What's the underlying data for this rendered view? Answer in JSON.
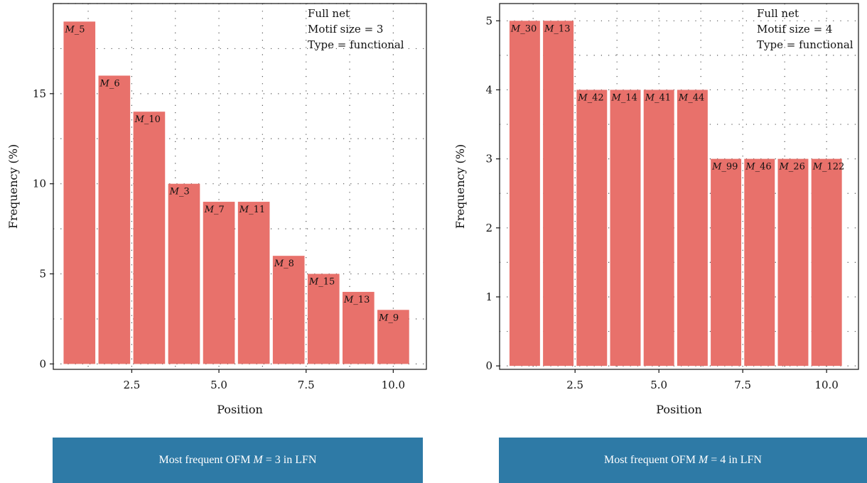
{
  "colors": {
    "bar": "#e8716b",
    "banner": "#2e7aa6",
    "axis": "#222222",
    "grid": "#555555"
  },
  "chart_data": [
    {
      "type": "bar",
      "xlabel": "Position",
      "ylabel": "Frequency (%)",
      "xlim": [
        0.25,
        10.95
      ],
      "ylim": [
        -0.3,
        20.0
      ],
      "xticks": [
        "2.5",
        "5.0",
        "7.5",
        "10.0"
      ],
      "yticks": [
        "0",
        "5",
        "10",
        "15"
      ],
      "grid": "dotted",
      "annotation": [
        "Full net",
        "Motif size = 3",
        "Type = functional"
      ],
      "bars": [
        {
          "position": 1,
          "value": 19,
          "label": "M_5"
        },
        {
          "position": 2,
          "value": 16,
          "label": "M_6"
        },
        {
          "position": 3,
          "value": 14,
          "label": "M_10"
        },
        {
          "position": 4,
          "value": 10,
          "label": "M_3"
        },
        {
          "position": 5,
          "value": 9,
          "label": "M_7"
        },
        {
          "position": 6,
          "value": 9,
          "label": "M_11"
        },
        {
          "position": 7,
          "value": 6,
          "label": "M_8"
        },
        {
          "position": 8,
          "value": 5,
          "label": "M_15"
        },
        {
          "position": 9,
          "value": 4,
          "label": "M_13"
        },
        {
          "position": 10,
          "value": 3,
          "label": "M_9"
        }
      ],
      "caption": {
        "pre": "Most frequent OFM ",
        "var": "M",
        "post": " = 3 in LFN"
      }
    },
    {
      "type": "bar",
      "xlabel": "Position",
      "ylabel": "Frequency (%)",
      "xlim": [
        0.25,
        10.95
      ],
      "ylim": [
        -0.05,
        5.25
      ],
      "xticks": [
        "2.5",
        "5.0",
        "7.5",
        "10.0"
      ],
      "yticks": [
        "0",
        "1",
        "2",
        "3",
        "4",
        "5"
      ],
      "grid": "dotted",
      "annotation": [
        "Full net",
        "Motif size = 4",
        "Type = functional"
      ],
      "bars": [
        {
          "position": 1,
          "value": 5,
          "label": "M_30"
        },
        {
          "position": 2,
          "value": 5,
          "label": "M_13"
        },
        {
          "position": 3,
          "value": 4,
          "label": "M_42"
        },
        {
          "position": 4,
          "value": 4,
          "label": "M_14"
        },
        {
          "position": 5,
          "value": 4,
          "label": "M_41"
        },
        {
          "position": 6,
          "value": 4,
          "label": "M_44"
        },
        {
          "position": 7,
          "value": 3,
          "label": "M_99"
        },
        {
          "position": 8,
          "value": 3,
          "label": "M_46"
        },
        {
          "position": 9,
          "value": 3,
          "label": "M_26"
        },
        {
          "position": 10,
          "value": 3,
          "label": "M_122"
        }
      ],
      "caption": {
        "pre": "Most frequent OFM ",
        "var": "M",
        "post": " = 4 in LFN"
      }
    }
  ]
}
